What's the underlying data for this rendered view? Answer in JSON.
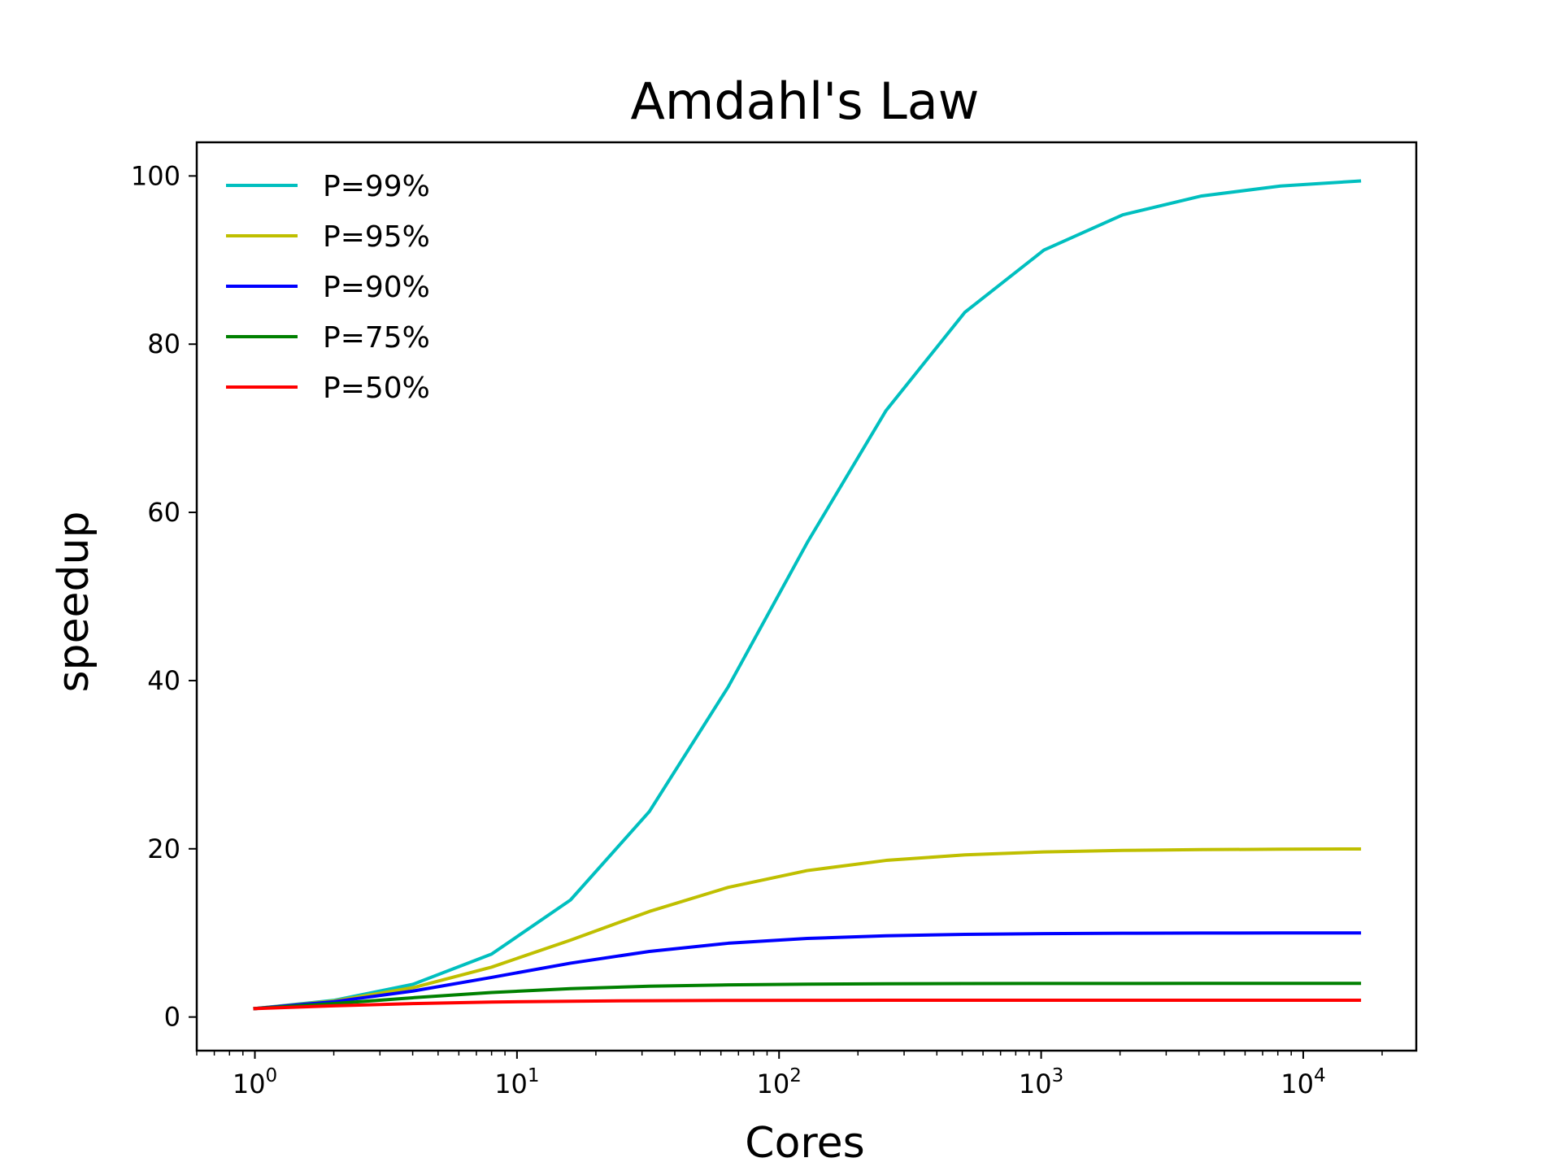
{
  "chart_data": {
    "type": "line",
    "title": "Amdahl's Law",
    "xlabel": "Cores",
    "ylabel": "speedup",
    "x_scale": "log",
    "xlim": [
      0.6,
      27000
    ],
    "ylim": [
      -4,
      104
    ],
    "yticks": [
      0,
      20,
      40,
      60,
      80,
      100
    ],
    "xticks": [
      {
        "value": 1,
        "base": "10",
        "exp": "0"
      },
      {
        "value": 10,
        "base": "10",
        "exp": "1"
      },
      {
        "value": 100,
        "base": "10",
        "exp": "2"
      },
      {
        "value": 1000,
        "base": "10",
        "exp": "3"
      },
      {
        "value": 10000,
        "base": "10",
        "exp": "4"
      }
    ],
    "x": [
      1,
      2,
      4,
      8,
      16,
      32,
      64,
      128,
      256,
      512,
      1024,
      2048,
      4096,
      8192,
      16384
    ],
    "series": [
      {
        "name": "P=99%",
        "color": "#00bfbf",
        "values": [
          1.0,
          1.98,
          3.88,
          7.48,
          13.91,
          24.43,
          39.26,
          56.39,
          72.11,
          83.8,
          91.18,
          95.38,
          97.62,
          98.8,
          99.4
        ]
      },
      {
        "name": "P=95%",
        "color": "#bfbf00",
        "values": [
          1.0,
          1.9,
          3.48,
          5.93,
          9.14,
          12.55,
          15.42,
          17.41,
          18.62,
          19.28,
          19.63,
          19.81,
          19.9,
          19.95,
          19.98
        ]
      },
      {
        "name": "P=90%",
        "color": "#0000ff",
        "values": [
          1.0,
          1.82,
          3.08,
          4.71,
          6.4,
          7.8,
          8.77,
          9.34,
          9.66,
          9.83,
          9.91,
          9.96,
          9.98,
          9.99,
          9.99
        ]
      },
      {
        "name": "P=75%",
        "color": "#008000",
        "values": [
          1.0,
          1.6,
          2.29,
          2.91,
          3.37,
          3.66,
          3.82,
          3.91,
          3.95,
          3.98,
          3.99,
          3.99,
          4.0,
          4.0,
          4.0
        ]
      },
      {
        "name": "P=50%",
        "color": "#ff0000",
        "values": [
          1.0,
          1.33,
          1.6,
          1.78,
          1.88,
          1.94,
          1.97,
          1.98,
          1.99,
          2.0,
          2.0,
          2.0,
          2.0,
          2.0,
          2.0
        ]
      }
    ],
    "legend": "upper-left",
    "grid": false
  }
}
